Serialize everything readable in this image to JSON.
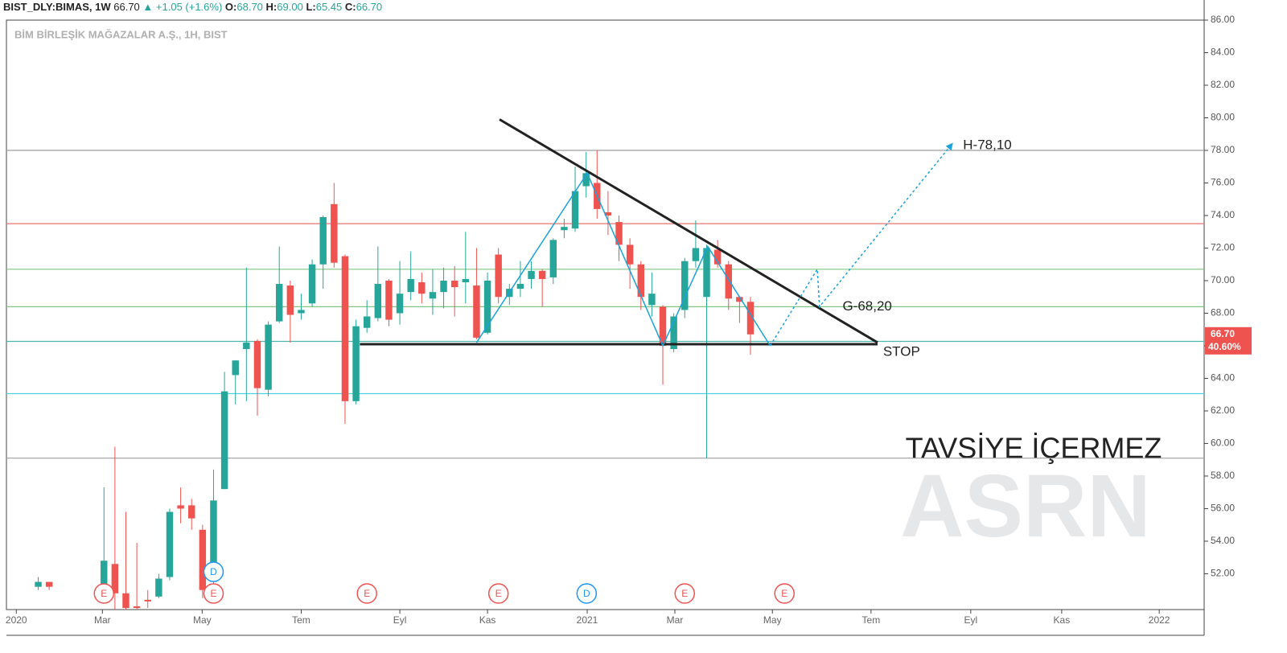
{
  "header": {
    "symbol": "BIST_DLY:BIMAS, 1W",
    "price": "66.70",
    "change": "▲ +1.05 (+1.6%)",
    "items": [
      {
        "label": "O:",
        "value": "68.70"
      },
      {
        "label": "H:",
        "value": "69.00"
      },
      {
        "label": "L:",
        "value": "65.45"
      },
      {
        "label": "C:",
        "value": "66.70"
      }
    ]
  },
  "chart_data": {
    "type": "candlestick",
    "subtitle": "BİM BİRLEŞİK MAĞAZALAR A.Ş., 1H, BIST",
    "x": [
      2,
      3,
      8,
      9,
      10,
      11,
      12,
      13,
      14,
      15,
      16,
      17,
      18,
      19,
      20,
      21,
      22,
      23,
      24,
      25,
      26,
      27,
      28,
      29,
      30,
      31,
      32,
      33,
      34,
      35,
      36,
      37,
      38,
      39,
      40,
      41,
      42,
      43,
      44,
      45,
      46,
      47,
      48,
      49,
      50,
      51,
      52,
      53,
      54,
      55,
      56,
      57,
      58,
      59,
      60,
      61,
      62,
      63,
      64,
      65,
      66,
      67
    ],
    "open": [
      51.2,
      51.5,
      51.0,
      52.6,
      50.8,
      50.0,
      50.4,
      50.6,
      51.8,
      56.2,
      56.2,
      54.7,
      51.5,
      57.2,
      64.2,
      65.8,
      66.3,
      63.3,
      67.5,
      69.7,
      68.0,
      68.6,
      71.0,
      74.7,
      71.5,
      62.6,
      67.1,
      67.7,
      70.0,
      68.0,
      69.3,
      69.9,
      68.9,
      69.3,
      70.0,
      69.9,
      69.7,
      66.8,
      71.6,
      69.0,
      69.5,
      70.1,
      70.6,
      70.2,
      73.1,
      73.2,
      75.8,
      76.0,
      74.2,
      73.6,
      72.2,
      71.0,
      68.5,
      68.4,
      65.8,
      68.2,
      71.2,
      69.0,
      71.9,
      71.0,
      69.0,
      68.7
    ],
    "high": [
      51.8,
      51.5,
      57.3,
      59.8,
      55.8,
      53.9,
      51.0,
      52.0,
      56.0,
      57.3,
      56.6,
      55.0,
      58.4,
      64.4,
      65.1,
      70.8,
      66.4,
      67.5,
      72.1,
      70.0,
      69.2,
      71.3,
      74.0,
      76.0,
      71.6,
      67.6,
      68.8,
      72.1,
      70.1,
      71.2,
      71.8,
      70.5,
      70.7,
      70.8,
      70.9,
      73.0,
      72.0,
      70.5,
      72.0,
      69.8,
      71.2,
      71.2,
      70.7,
      72.6,
      73.8,
      77.0,
      77.9,
      78.0,
      75.5,
      74.0,
      72.6,
      71.2,
      70.5,
      68.5,
      68.0,
      71.4,
      73.7,
      72.2,
      72.5,
      71.2,
      69.0,
      69.0
    ],
    "low": [
      51.0,
      51.0,
      50.5,
      49.5,
      49.5,
      49.5,
      49.9,
      50.5,
      51.6,
      55.1,
      54.7,
      50.5,
      51.0,
      57.2,
      62.4,
      62.6,
      61.7,
      62.9,
      67.4,
      66.2,
      67.6,
      68.4,
      69.5,
      70.8,
      61.2,
      62.4,
      66.8,
      67.5,
      67.2,
      67.3,
      68.8,
      68.6,
      67.9,
      68.3,
      67.8,
      68.6,
      66.4,
      66.7,
      68.6,
      68.5,
      69.0,
      69.5,
      68.4,
      69.8,
      72.6,
      73.0,
      75.1,
      73.8,
      72.8,
      71.2,
      69.5,
      68.2,
      67.8,
      63.6,
      65.6,
      67.7,
      70.8,
      59.1,
      70.8,
      68.2,
      67.4,
      65.45
    ],
    "close": [
      51.5,
      51.2,
      52.8,
      50.8,
      49.9,
      49.9,
      50.3,
      51.7,
      55.8,
      56.0,
      55.4,
      51.0,
      56.5,
      63.2,
      65.1,
      66.2,
      63.4,
      67.3,
      69.8,
      67.9,
      68.2,
      71.0,
      73.9,
      71.1,
      62.6,
      67.2,
      67.8,
      69.8,
      67.6,
      69.2,
      70.1,
      69.2,
      69.3,
      70.0,
      69.6,
      70.1,
      66.5,
      70.0,
      69.0,
      69.5,
      69.8,
      70.6,
      70.1,
      72.5,
      73.3,
      75.5,
      76.6,
      74.4,
      74.0,
      72.2,
      71.0,
      69.0,
      69.2,
      66.0,
      67.8,
      71.2,
      72.0,
      72.0,
      71.0,
      68.9,
      68.7,
      66.7
    ],
    "up_color": "#26a69a",
    "down_color": "#ef5350",
    "xlim": [
      -0.9,
      108.4
    ],
    "xticks": [
      {
        "value": 0,
        "label": "2020"
      },
      {
        "value": 7.86,
        "label": "Mar"
      },
      {
        "value": 16.96,
        "label": "May"
      },
      {
        "value": 26.0,
        "label": "Tem"
      },
      {
        "value": 35.0,
        "label": "Eyl"
      },
      {
        "value": 43.0,
        "label": "Kas"
      },
      {
        "value": 52.1,
        "label": "2021"
      },
      {
        "value": 60.1,
        "label": "Mar"
      },
      {
        "value": 69.0,
        "label": "May"
      },
      {
        "value": 78.0,
        "label": "Tem"
      },
      {
        "value": 87.1,
        "label": "Eyl"
      },
      {
        "value": 95.4,
        "label": "Kas"
      },
      {
        "value": 104.3,
        "label": "2022"
      }
    ],
    "ylim": [
      49.8,
      86.0
    ],
    "yticks": [
      {
        "value": 52,
        "label": "52.00"
      },
      {
        "value": 54,
        "label": "54.00"
      },
      {
        "value": 56,
        "label": "56.00"
      },
      {
        "value": 58,
        "label": "58.00"
      },
      {
        "value": 60,
        "label": "60.00"
      },
      {
        "value": 62,
        "label": "62.00"
      },
      {
        "value": 64,
        "label": "64.00"
      },
      {
        "value": 66,
        "label": "66.00"
      },
      {
        "value": 68,
        "label": "68.00"
      },
      {
        "value": 70,
        "label": "70.00"
      },
      {
        "value": 72,
        "label": "72.00"
      },
      {
        "value": 74,
        "label": "74.00"
      },
      {
        "value": 76,
        "label": "76.00"
      },
      {
        "value": 78,
        "label": "78.00"
      },
      {
        "value": 80,
        "label": "80.00"
      },
      {
        "value": 82,
        "label": "82.00"
      },
      {
        "value": 84,
        "label": "84.00"
      },
      {
        "value": 86,
        "label": "86.00"
      }
    ],
    "hlines": [
      {
        "value": 78.0,
        "color": "#9e9e9e"
      },
      {
        "value": 59.1,
        "color": "#9e9e9e"
      },
      {
        "value": 73.5,
        "color": "#e57373"
      },
      {
        "value": 70.7,
        "color": "#81c784"
      },
      {
        "value": 68.4,
        "color": "#81c784"
      },
      {
        "value": 66.27,
        "color": "#4db6ac"
      },
      {
        "value": 63.06,
        "color": "#4dd0e1"
      }
    ],
    "drawings": [
      {
        "color": "#222222",
        "width": 3,
        "dash": false,
        "points": [
          [
            44.1,
            79.9
          ],
          [
            78.6,
            66.2
          ]
        ]
      },
      {
        "color": "#222222",
        "width": 3,
        "dash": false,
        "points": [
          [
            31.35,
            66.1
          ],
          [
            78.6,
            66.1
          ]
        ]
      },
      {
        "color": "#1aa3d9",
        "width": 1.5,
        "dash": false,
        "points": [
          [
            42,
            66.2
          ],
          [
            52.1,
            76.6
          ],
          [
            59,
            66.0
          ],
          [
            63.1,
            72.1
          ],
          [
            68.8,
            66.0
          ]
        ]
      },
      {
        "color": "#1aa3d9",
        "width": 1.5,
        "dash": true,
        "points": [
          [
            68.8,
            66.0
          ],
          [
            73.1,
            70.7
          ],
          [
            73.3,
            68.4
          ],
          [
            85.4,
            78.4
          ]
        ]
      }
    ],
    "annotations": [
      {
        "text": "H-78,10",
        "x": 86.4,
        "value": 78.3
      },
      {
        "text": "G-68,20",
        "x": 75.4,
        "value": 68.4
      },
      {
        "text": "STOP",
        "x": 79.1,
        "value": 65.6
      }
    ],
    "markers": [
      {
        "x": 8,
        "label": "E",
        "color": "#ef5350"
      },
      {
        "x": 18,
        "label": "E",
        "color": "#ef5350"
      },
      {
        "x": 18,
        "label": "D",
        "color": "#2196f3"
      },
      {
        "x": 32,
        "label": "E",
        "color": "#ef5350"
      },
      {
        "x": 44,
        "label": "E",
        "color": "#ef5350"
      },
      {
        "x": 52.05,
        "label": "D",
        "color": "#2196f3"
      },
      {
        "x": 61,
        "label": "E",
        "color": "#ef5350"
      },
      {
        "x": 70.1,
        "label": "E",
        "color": "#ef5350"
      }
    ],
    "last_price": {
      "value": 66.7,
      "label": "66.70"
    },
    "last_change": "40.60%",
    "disclaimer": "TAVSİYE İÇERMEZ",
    "watermark": "ASRN"
  }
}
